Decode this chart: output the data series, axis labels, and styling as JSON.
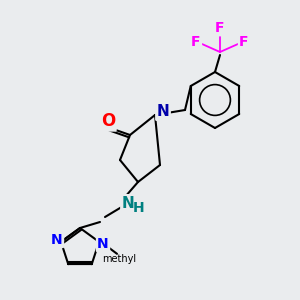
{
  "bg_color": "#eaecee",
  "bond_color": "#000000",
  "bond_width": 1.5,
  "atom_colors": {
    "O": "#ff0000",
    "N": "#0000ff",
    "N_main": "#0000aa",
    "F": "#ff00ff",
    "NH": "#008080",
    "C": "#000000"
  },
  "font_size": 11,
  "font_size_small": 10
}
